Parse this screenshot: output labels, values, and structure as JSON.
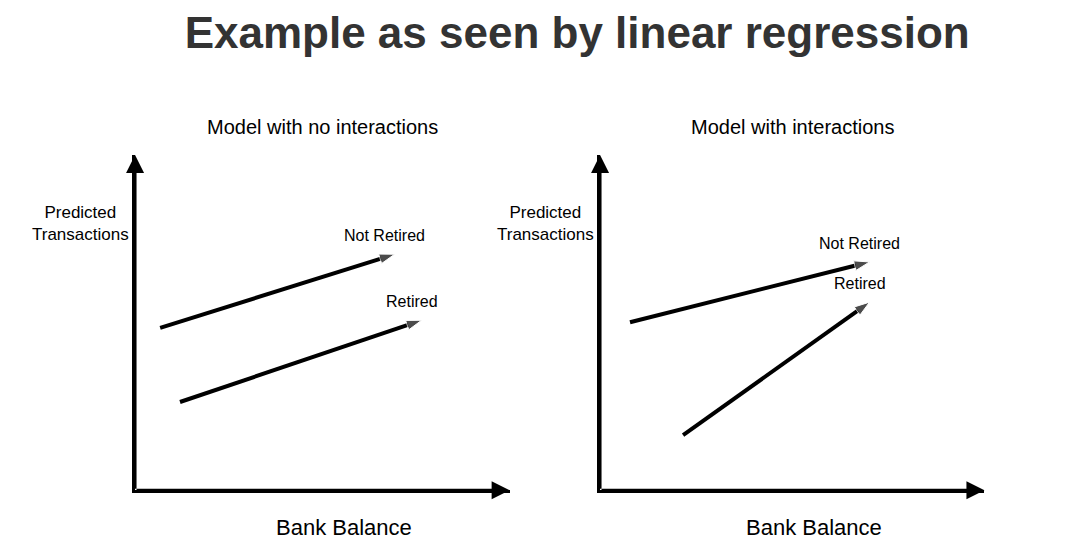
{
  "title": "Example as seen by linear regression",
  "chart_data": [
    {
      "type": "line",
      "title": "Model with no interactions",
      "x_label": "Bank Balance",
      "y_label": "Predicted Transactions",
      "xlim": [
        0,
        10
      ],
      "ylim": [
        0,
        10
      ],
      "xticks": [],
      "yticks": [],
      "tick_labels": false,
      "grid": false,
      "marker": "arrow",
      "series": [
        {
          "name": "Not Retired",
          "color": "#000000",
          "x": [
            0.67,
            6.93
          ],
          "values": [
            4.84,
            7.04
          ]
        },
        {
          "name": "Retired",
          "color": "#000000",
          "x": [
            1.2,
            7.65
          ],
          "values": [
            2.63,
            5.07
          ]
        }
      ]
    },
    {
      "type": "line",
      "title": "Model with interactions",
      "x_label": "Bank Balance",
      "y_label": "Predicted Transactions",
      "xlim": [
        0,
        10
      ],
      "ylim": [
        0,
        10
      ],
      "xticks": [],
      "yticks": [],
      "tick_labels": false,
      "grid": false,
      "marker": "arrow",
      "series": [
        {
          "name": "Not Retired",
          "color": "#000000",
          "x": [
            0.78,
            7.01
          ],
          "values": [
            5.01,
            6.81
          ]
        },
        {
          "name": "Retired",
          "color": "#000000",
          "x": [
            2.16,
            7.01
          ],
          "values": [
            1.64,
            5.61
          ]
        }
      ]
    }
  ]
}
